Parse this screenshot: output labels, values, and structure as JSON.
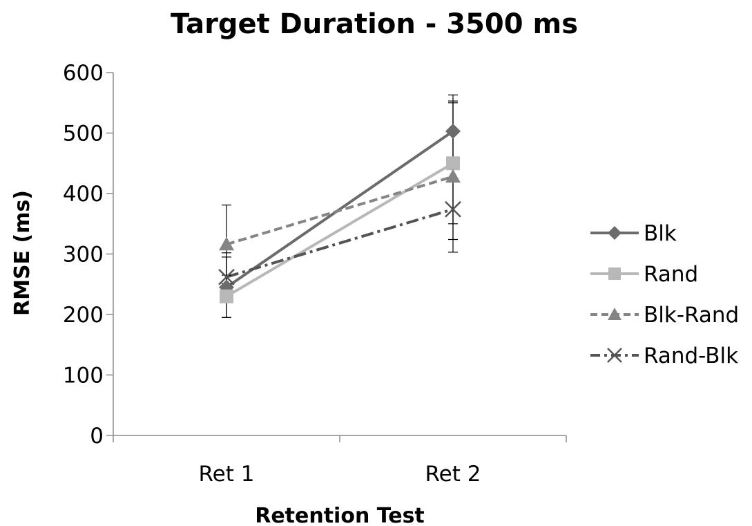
{
  "chart_data": {
    "type": "line",
    "title": "Target Duration - 3500 ms",
    "xlabel": "Retention Test",
    "ylabel": "RMSE (ms)",
    "categories": [
      "Ret 1",
      "Ret 2"
    ],
    "ylim": [
      0,
      600
    ],
    "yticks": [
      "0",
      "100",
      "200",
      "300",
      "400",
      "500",
      "600"
    ],
    "grid": false,
    "legend_position": "right",
    "series": [
      {
        "name": "Blk",
        "values": [
          245,
          503
        ],
        "error": [
          50,
          60
        ],
        "color": "#6b6b6b",
        "marker": "diamond",
        "dash": "solid"
      },
      {
        "name": "Rand",
        "values": [
          230,
          450
        ],
        "error": [
          35,
          100
        ],
        "color": "#b8b8b8",
        "marker": "square",
        "dash": "solid"
      },
      {
        "name": "Blk-Rand",
        "values": [
          316,
          428
        ],
        "error": [
          65,
          125
        ],
        "color": "#858585",
        "marker": "triangle",
        "dash": "dash"
      },
      {
        "name": "Rand-Blk",
        "values": [
          262,
          374
        ],
        "error": [
          40,
          50
        ],
        "color": "#555555",
        "marker": "x",
        "dash": "dashdot"
      }
    ]
  }
}
